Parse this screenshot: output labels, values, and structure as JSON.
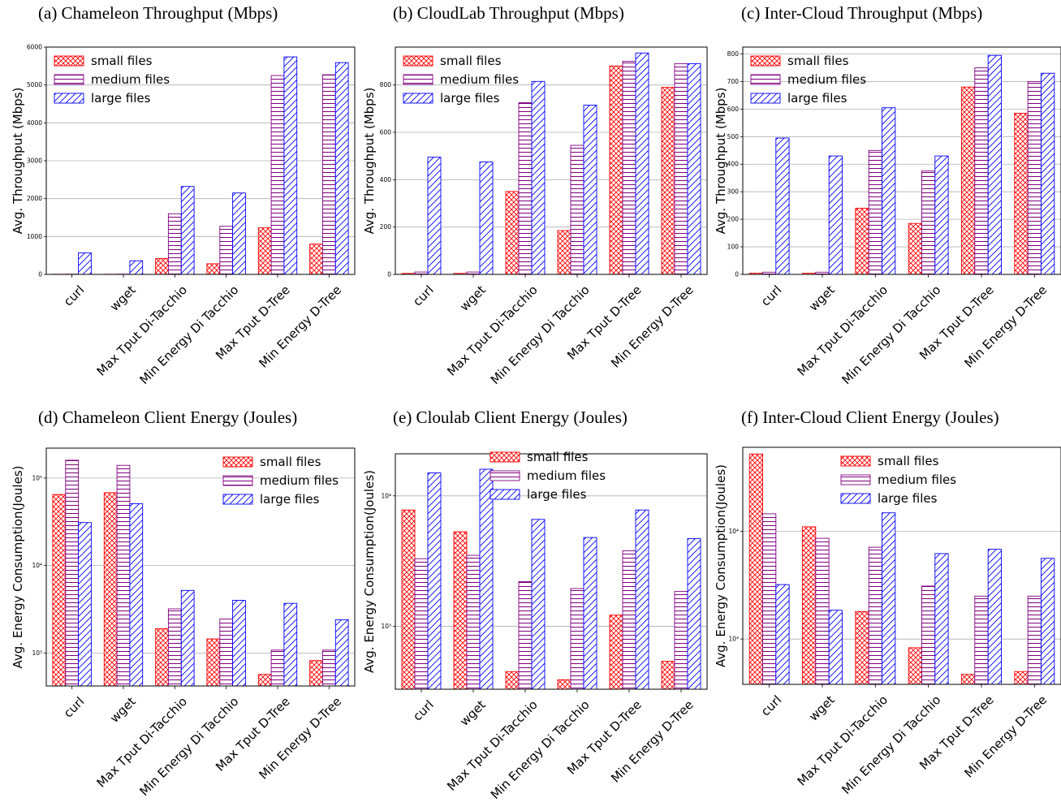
{
  "colors": {
    "small": "#ff0000",
    "medium": "#800080",
    "large": "#0000ff"
  },
  "chart_data": [
    {
      "type": "bar",
      "title": "(a) Chameleon Throughput (Mbps)",
      "ylabel": "Avg. Throughput (Mbps)",
      "yscale": "linear",
      "ylim": [
        0,
        6000
      ],
      "yticks": [
        0,
        1000,
        2000,
        3000,
        4000,
        5000,
        6000
      ],
      "ytick_labels": [
        "0",
        "1000",
        "2000",
        "3000",
        "4000",
        "5000",
        "6000"
      ],
      "legend_loc": "upper-left",
      "categories": [
        "curl",
        "wget",
        "Max Tput Di-Tacchio",
        "Min Energy Di Tacchio",
        "Max Tput D-Tree",
        "Min Energy D-Tree"
      ],
      "series": [
        {
          "name": "small files",
          "values": [
            4,
            4,
            420,
            280,
            1230,
            800
          ]
        },
        {
          "name": "medium files",
          "values": [
            6,
            6,
            1600,
            1270,
            5250,
            5270
          ]
        },
        {
          "name": "large files",
          "values": [
            570,
            360,
            2320,
            2150,
            5740,
            5590
          ]
        }
      ]
    },
    {
      "type": "bar",
      "title": "(b) CloudLab Throughput (Mbps)",
      "ylabel": "Avg. Throughput (Mbps)",
      "yscale": "linear",
      "ylim": [
        0,
        960
      ],
      "yticks": [
        0,
        200,
        400,
        600,
        800
      ],
      "ytick_labels": [
        "0",
        "200",
        "400",
        "600",
        "800"
      ],
      "legend_loc": "upper-left",
      "categories": [
        "curl",
        "wget",
        "Max Tput Di-Tacchio",
        "Min Energy Di Tacchio",
        "Max Tput D-Tree",
        "Min Energy D-Tree"
      ],
      "series": [
        {
          "name": "small files",
          "values": [
            4,
            4,
            350,
            185,
            880,
            790
          ]
        },
        {
          "name": "medium files",
          "values": [
            10,
            10,
            725,
            545,
            900,
            890
          ]
        },
        {
          "name": "large files",
          "values": [
            495,
            475,
            815,
            715,
            935,
            890
          ]
        }
      ]
    },
    {
      "type": "bar",
      "title": "(c) Inter-Cloud Throughput (Mbps)",
      "ylabel": "Avg. Throughput (Mbps)",
      "yscale": "linear",
      "ylim": [
        0,
        825
      ],
      "yticks": [
        0,
        100,
        200,
        300,
        400,
        500,
        600,
        700,
        800
      ],
      "ytick_labels": [
        "0",
        "100",
        "200",
        "300",
        "400",
        "500",
        "600",
        "700",
        "800"
      ],
      "legend_loc": "upper-left",
      "categories": [
        "curl",
        "wget",
        "Max Tput Di-Tacchio",
        "Min Energy Di Tacchio",
        "Max Tput D-Tree",
        "Min Energy D-Tree"
      ],
      "series": [
        {
          "name": "small files",
          "values": [
            4,
            4,
            240,
            185,
            680,
            585
          ]
        },
        {
          "name": "medium files",
          "values": [
            8,
            8,
            450,
            375,
            750,
            700
          ]
        },
        {
          "name": "large files",
          "values": [
            495,
            430,
            605,
            430,
            795,
            730
          ]
        }
      ]
    },
    {
      "type": "bar",
      "title": "(d) Chameleon Client Energy (Joules)",
      "ylabel": "Avg. Energy Consumption(Joules)",
      "yscale": "log",
      "ylim": [
        420,
        220000
      ],
      "yticks": [
        1000,
        10000,
        100000
      ],
      "ytick_labels": [
        "10³",
        "10⁴",
        "10⁵"
      ],
      "legend_loc": "upper-right",
      "categories": [
        "curl",
        "wget",
        "Max Tput Di-Tacchio",
        "Min Energy Di Tacchio",
        "Max Tput D-Tree",
        "Min Energy D-Tree"
      ],
      "series": [
        {
          "name": "small files",
          "values": [
            65000,
            68000,
            1900,
            1450,
            570,
            820
          ]
        },
        {
          "name": "medium files",
          "values": [
            160000,
            140000,
            3200,
            2450,
            1080,
            1080
          ]
        },
        {
          "name": "large files",
          "values": [
            31000,
            51000,
            5200,
            4000,
            3700,
            2400
          ]
        }
      ]
    },
    {
      "type": "bar",
      "title": "(e) Cloulab Client Energy (Joules)",
      "ylabel": "Avg. Energy Consumption(Joules)",
      "yscale": "log",
      "ylim": [
        330,
        21000
      ],
      "yticks": [
        1000,
        10000
      ],
      "ytick_labels": [
        "10³",
        "10⁴"
      ],
      "legend_loc": "upper-center",
      "categories": [
        "curl",
        "wget",
        "Max Tput Di-Tacchio",
        "Min Energy Di Tacchio",
        "Max Tput D-Tree",
        "Min Energy D-Tree"
      ],
      "series": [
        {
          "name": "small files",
          "values": [
            7800,
            5300,
            450,
            390,
            1220,
            540
          ]
        },
        {
          "name": "medium files",
          "values": [
            3300,
            3500,
            2200,
            1950,
            3800,
            1850
          ]
        },
        {
          "name": "large files",
          "values": [
            15000,
            16000,
            6600,
            4800,
            7800,
            4700
          ]
        }
      ]
    },
    {
      "type": "bar",
      "title": "(f) Inter-Cloud Client Energy (Joules)",
      "ylabel": "Avg. Energy Consumption(Joules)",
      "yscale": "log",
      "ylim": [
        380,
        60000
      ],
      "yticks": [
        1000,
        10000
      ],
      "ytick_labels": [
        "10³",
        "10⁴"
      ],
      "legend_loc": "upper-center",
      "categories": [
        "curl",
        "wget",
        "Max Tput Di-Tacchio",
        "Min Energy Di Tacchio",
        "Max Tput D-Tree",
        "Min Energy D-Tree"
      ],
      "series": [
        {
          "name": "small files",
          "values": [
            52000,
            11000,
            1800,
            830,
            470,
            500
          ]
        },
        {
          "name": "medium files",
          "values": [
            14500,
            8600,
            7100,
            3100,
            2500,
            2500
          ]
        },
        {
          "name": "large files",
          "values": [
            3200,
            1850,
            14800,
            6200,
            6800,
            5600
          ]
        }
      ]
    }
  ]
}
